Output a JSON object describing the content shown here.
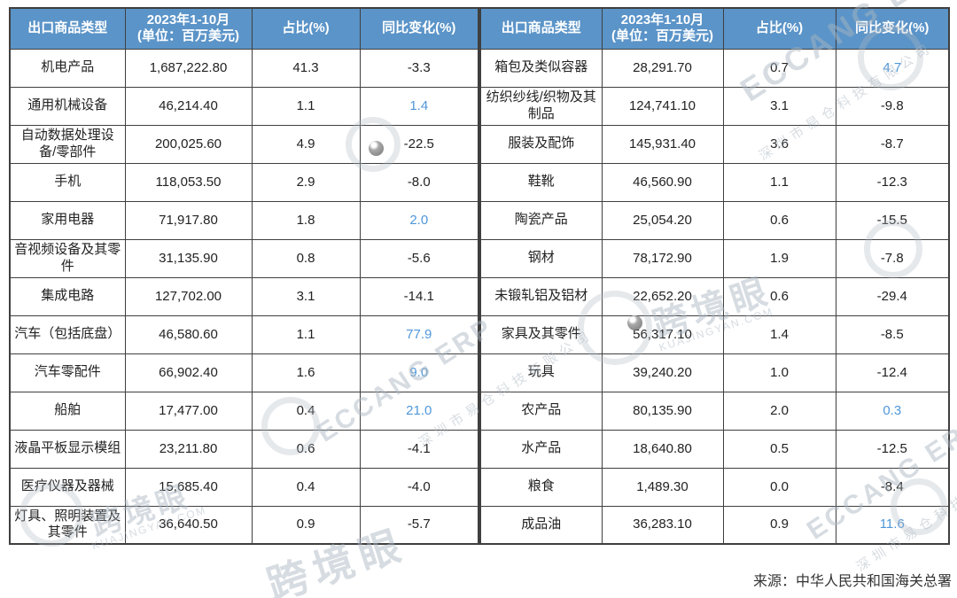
{
  "chart_data": [
    {
      "type": "table",
      "columns": [
        "出口商品类型",
        "2023年1-10月\n(单位：百万美元)",
        "占比(%)",
        "同比变化(%)"
      ],
      "rows": [
        [
          "机电产品",
          "1,687,222.80",
          "41.3",
          "-3.3"
        ],
        [
          "通用机械设备",
          "46,214.40",
          "1.1",
          "1.4"
        ],
        [
          "自动数据处理设备/零部件",
          "200,025.60",
          "4.9",
          "-22.5"
        ],
        [
          "手机",
          "118,053.50",
          "2.9",
          "-8.0"
        ],
        [
          "家用电器",
          "71,917.80",
          "1.8",
          "2.0"
        ],
        [
          "音视频设备及其零件",
          "31,135.90",
          "0.8",
          "-5.6"
        ],
        [
          "集成电路",
          "127,702.00",
          "3.1",
          "-14.1"
        ],
        [
          "汽车（包括底盘）",
          "46,580.60",
          "1.1",
          "77.9"
        ],
        [
          "汽车零配件",
          "66,902.40",
          "1.6",
          "9.0"
        ],
        [
          "船舶",
          "17,477.00",
          "0.4",
          "21.0"
        ],
        [
          "液晶平板显示模组",
          "23,211.80",
          "0.6",
          "-4.1"
        ],
        [
          "医疗仪器及器械",
          "15,685.40",
          "0.4",
          "-4.0"
        ],
        [
          "灯具、照明装置及其零件",
          "36,640.50",
          "0.9",
          "-5.7"
        ]
      ]
    },
    {
      "type": "table",
      "columns": [
        "出口商品类型",
        "2023年1-10月\n(单位：百万美元)",
        "占比(%)",
        "同比变化(%)"
      ],
      "rows": [
        [
          "箱包及类似容器",
          "28,291.70",
          "0.7",
          "4.7"
        ],
        [
          "纺织纱线/织物及其制品",
          "124,741.10",
          "3.1",
          "-9.8"
        ],
        [
          "服装及配饰",
          "145,931.40",
          "3.6",
          "-8.7"
        ],
        [
          "鞋靴",
          "46,560.90",
          "1.1",
          "-12.3"
        ],
        [
          "陶瓷产品",
          "25,054.20",
          "0.6",
          "-15.5"
        ],
        [
          "钢材",
          "78,172.90",
          "1.9",
          "-7.8"
        ],
        [
          "未锻轧铝及铝材",
          "22,652.20",
          "0.6",
          "-29.4"
        ],
        [
          "家具及其零件",
          "56,317.10",
          "1.4",
          "-8.5"
        ],
        [
          "玩具",
          "39,240.20",
          "1.0",
          "-12.4"
        ],
        [
          "农产品",
          "80,135.90",
          "2.0",
          "0.3"
        ],
        [
          "水产品",
          "18,640.80",
          "0.5",
          "-12.5"
        ],
        [
          "粮食",
          "1,489.30",
          "0.0",
          "-8.4"
        ],
        [
          "成品油",
          "36,283.10",
          "0.9",
          "11.6"
        ]
      ]
    }
  ],
  "source_note": "来源：中华人民共和国海关总署",
  "watermarks": {
    "brand": "ECCANG ERP",
    "brand_cn": "深圳市易仓科技有限公司",
    "site": "跨境眼",
    "site_sub": "KUAJINGYAN.COM"
  },
  "colors": {
    "header_bg": "#5b94c8",
    "positive_change": "#4f97d9",
    "border": "#3f3f3f",
    "header_text": "#ffffff"
  }
}
